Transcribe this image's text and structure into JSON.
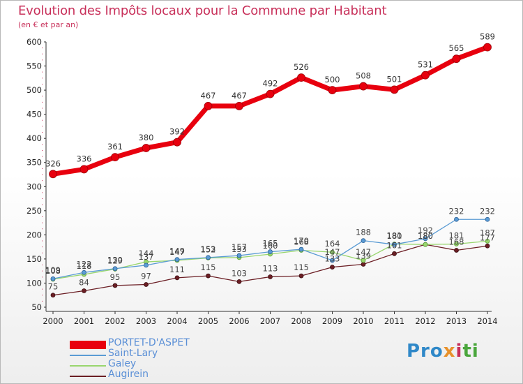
{
  "chart_data": {
    "type": "line",
    "title": "Evolution des Impôts locaux pour la Commune par Habitant",
    "subtitle": "(en € et par an)",
    "x": [
      "2000",
      "2001",
      "2002",
      "2003",
      "2004",
      "2005",
      "2006",
      "2007",
      "2008",
      "2009",
      "2010",
      "2011",
      "2012",
      "2013",
      "2014"
    ],
    "ylim": [
      50,
      600
    ],
    "yticks": [
      50,
      100,
      150,
      200,
      250,
      300,
      350,
      400,
      450,
      500,
      550,
      600
    ],
    "grid": false,
    "legend_position": "bottom-left",
    "series": [
      {
        "name": "PORTET-D'ASPET",
        "color": "#e8000e",
        "values": [
          326,
          336,
          361,
          380,
          392,
          467,
          467,
          492,
          526,
          500,
          508,
          501,
          531,
          565,
          589
        ]
      },
      {
        "name": "Saint-Lary",
        "color": "#5a9bd4",
        "values": [
          109,
          122,
          130,
          137,
          149,
          153,
          157,
          165,
          170,
          147,
          188,
          180,
          192,
          232,
          232
        ]
      },
      {
        "name": "Galey",
        "color": "#99d66e",
        "values": [
          108,
          118,
          129,
          144,
          147,
          152,
          153,
          160,
          168,
          164,
          147,
          181,
          180,
          181,
          187
        ]
      },
      {
        "name": "Augirein",
        "color": "#6b1e24",
        "values": [
          75,
          84,
          95,
          97,
          111,
          115,
          103,
          113,
          115,
          133,
          139,
          161,
          180,
          168,
          177
        ]
      }
    ]
  },
  "brand": {
    "p1": "Pro",
    "p2": "x",
    "p3": "i",
    "p4": "ti"
  }
}
